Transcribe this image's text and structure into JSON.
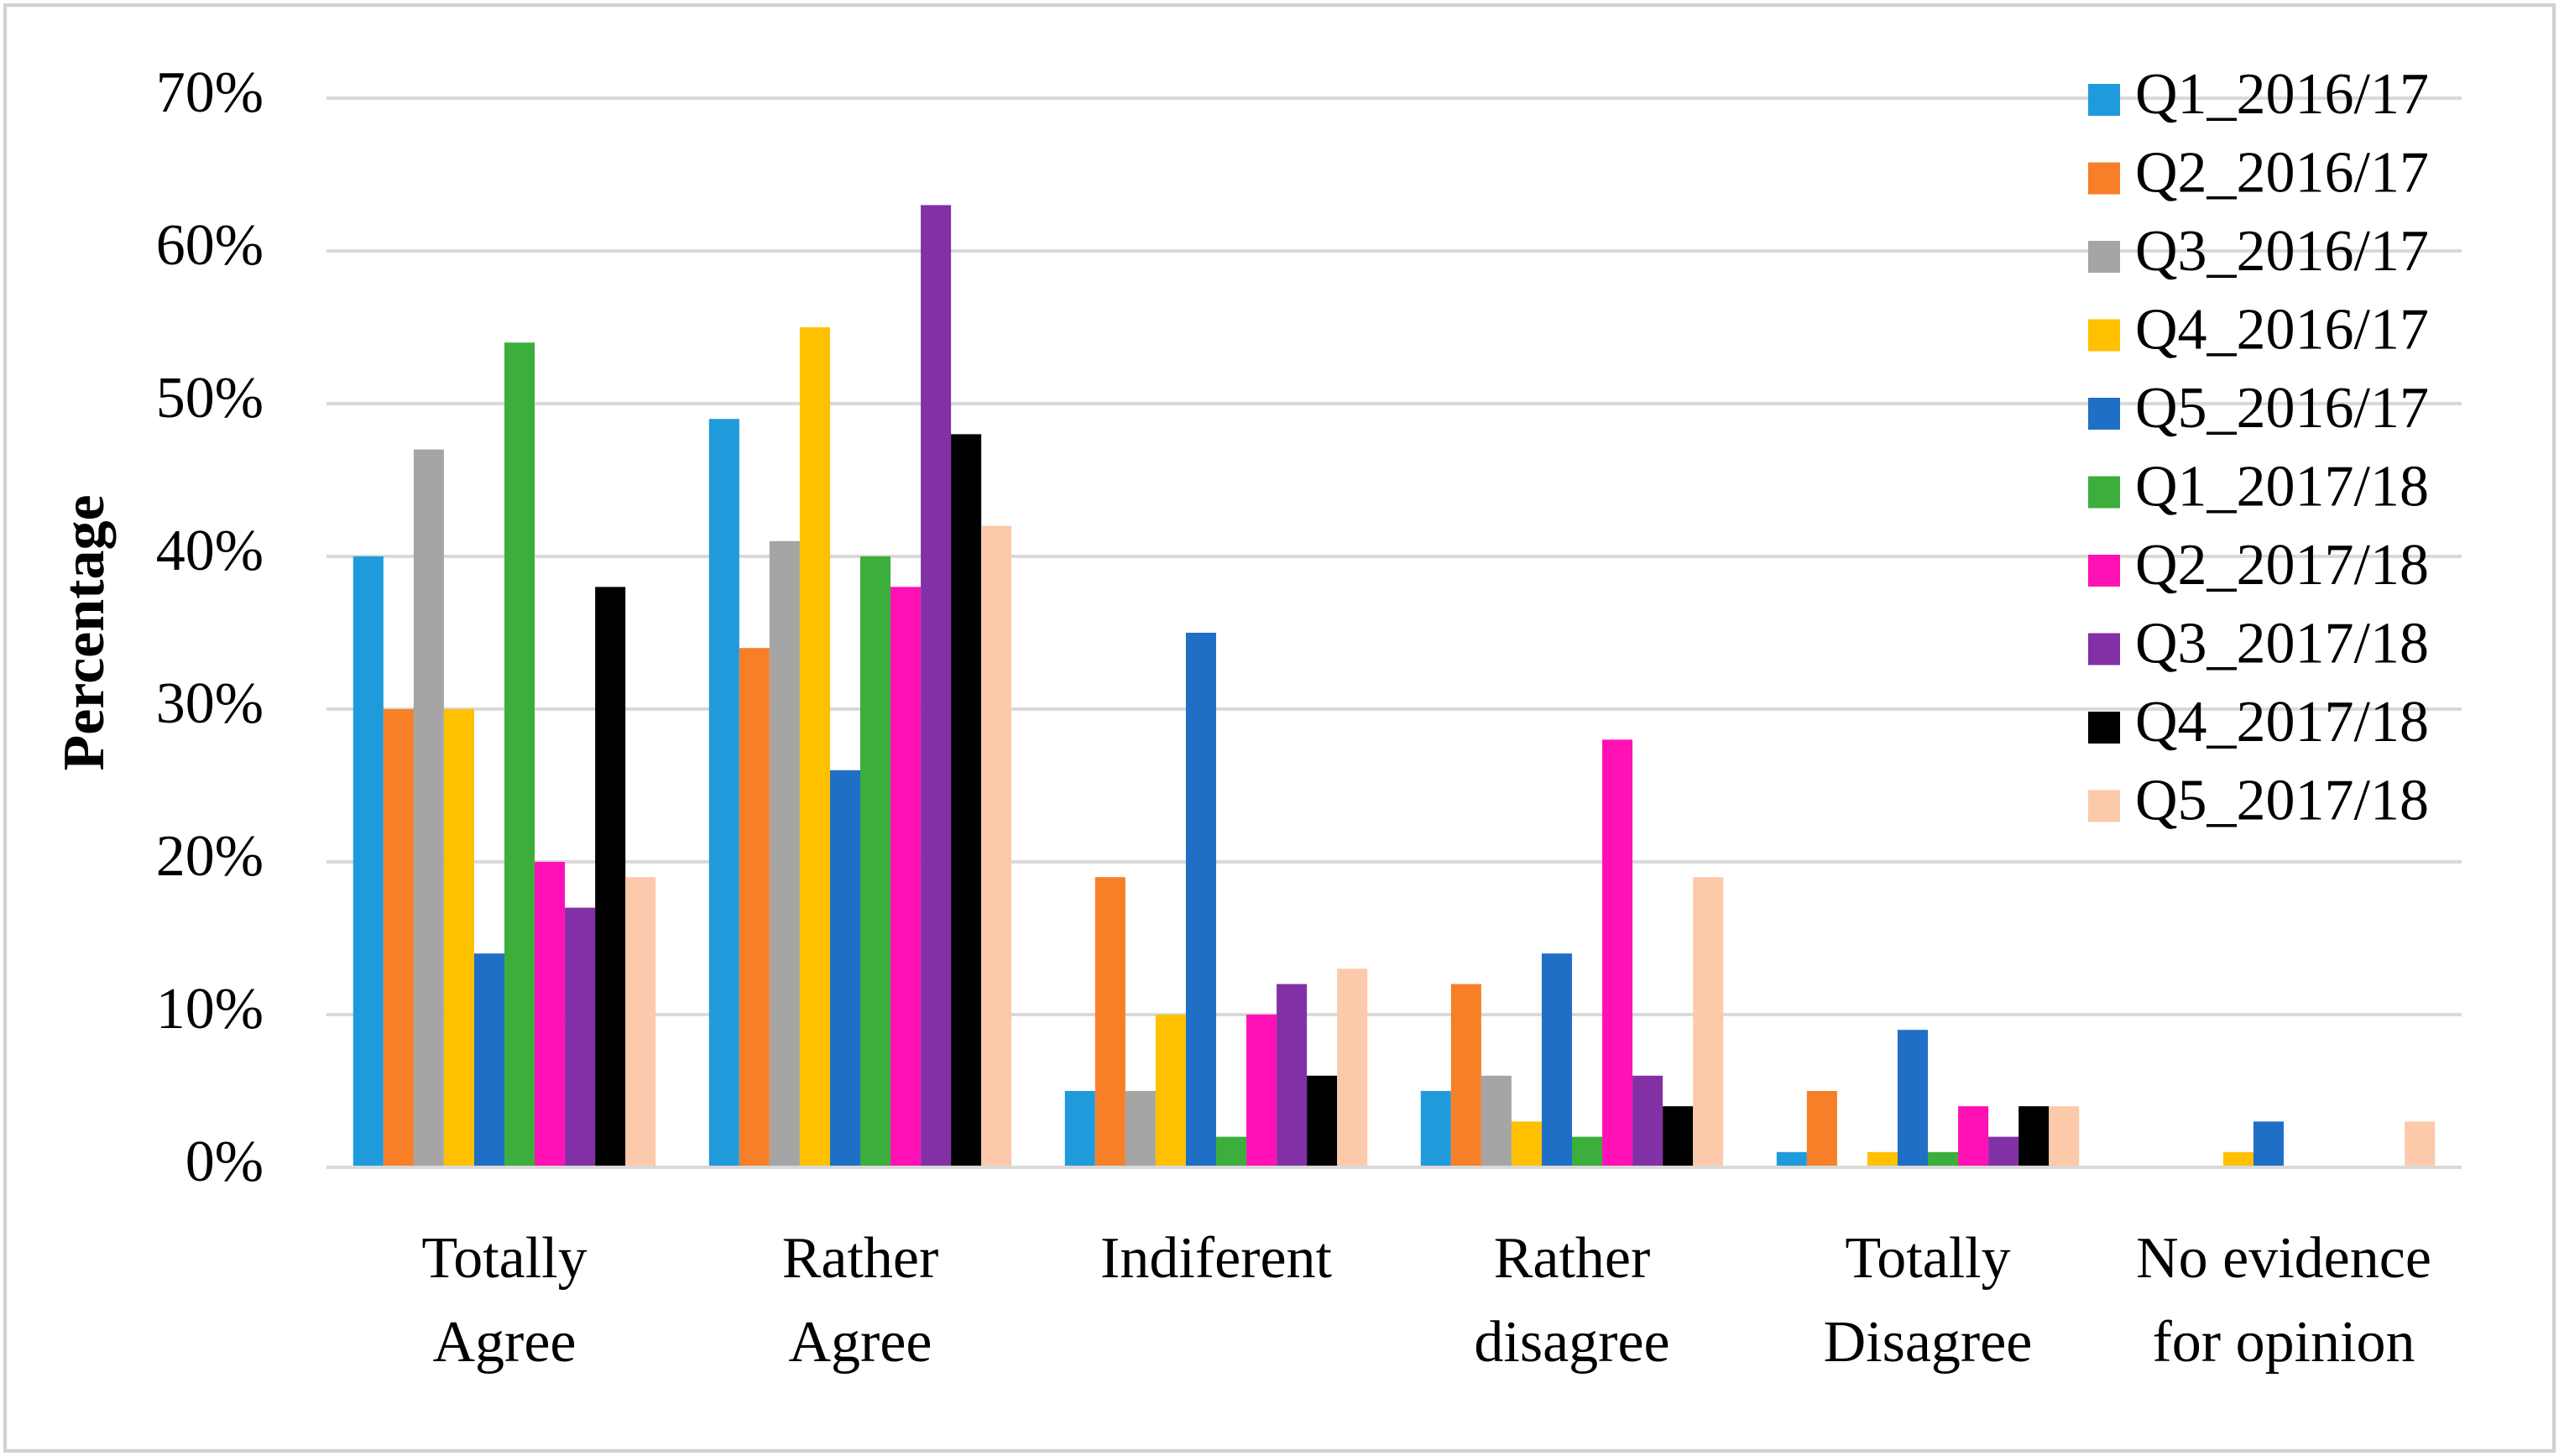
{
  "chart_data": {
    "type": "bar",
    "y_label": "Percentage",
    "categories": [
      "Totally Agree",
      "Rather Agree",
      "Indiferent",
      "Rather disagree",
      "Totally Disagree",
      "No evidence for opinion"
    ],
    "series": [
      {
        "name": "Q1_2016/17",
        "color": "#1f9bdc",
        "values": [
          40,
          49,
          5,
          5,
          1,
          0
        ]
      },
      {
        "name": "Q2_2016/17",
        "color": "#f77f27",
        "values": [
          30,
          34,
          19,
          12,
          5,
          0
        ]
      },
      {
        "name": "Q3_2016/17",
        "color": "#a5a5a5",
        "values": [
          47,
          41,
          5,
          6,
          0,
          0
        ]
      },
      {
        "name": "Q4_2016/17",
        "color": "#ffc000",
        "values": [
          30,
          55,
          10,
          3,
          1,
          1
        ]
      },
      {
        "name": "Q5_2016/17",
        "color": "#1f6fc6",
        "values": [
          14,
          26,
          35,
          14,
          9,
          3
        ]
      },
      {
        "name": "Q1_2017/18",
        "color": "#3cae3c",
        "values": [
          54,
          40,
          2,
          2,
          1,
          0
        ]
      },
      {
        "name": "Q2_2017/18",
        "color": "#ff11b5",
        "values": [
          20,
          38,
          10,
          28,
          4,
          0
        ]
      },
      {
        "name": "Q3_2017/18",
        "color": "#8230a6",
        "values": [
          17,
          63,
          12,
          6,
          2,
          0
        ]
      },
      {
        "name": "Q4_2017/18",
        "color": "#000000",
        "values": [
          38,
          48,
          6,
          4,
          4,
          0
        ]
      },
      {
        "name": "Q5_2017/18",
        "color": "#fccaaa",
        "values": [
          19,
          42,
          13,
          19,
          4,
          3
        ]
      }
    ],
    "ylim": [
      0,
      70
    ],
    "yticks": [
      {
        "value": 0,
        "label": "0%"
      },
      {
        "value": 10,
        "label": "10%"
      },
      {
        "value": 20,
        "label": "20%"
      },
      {
        "value": 30,
        "label": "30%"
      },
      {
        "value": 40,
        "label": "40%"
      },
      {
        "value": 50,
        "label": "50%"
      },
      {
        "value": 60,
        "label": "60%"
      },
      {
        "value": 70,
        "label": "70%"
      }
    ],
    "grid": true,
    "legend": "top-right"
  }
}
